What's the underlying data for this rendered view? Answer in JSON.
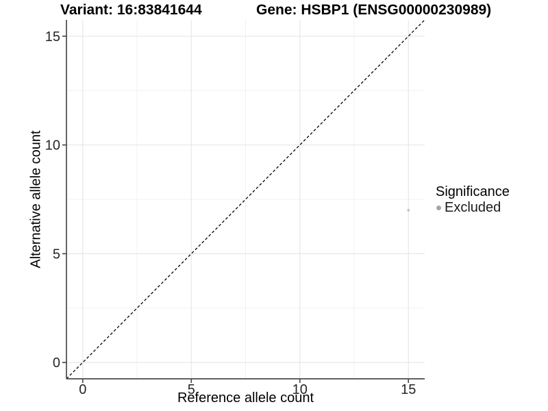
{
  "titles": {
    "variant": "Variant: 16:83841644",
    "gene": "Gene: HSBP1 (ENSG00000230989)"
  },
  "chart_data": {
    "type": "scatter",
    "title_left": "Variant: 16:83841644",
    "title_right": "Gene: HSBP1 (ENSG00000230989)",
    "xlabel": "Reference allele count",
    "ylabel": "Alternative allele count",
    "xlim": [
      -0.75,
      15.75
    ],
    "ylim": [
      -0.75,
      15.75
    ],
    "x_ticks": [
      0,
      5,
      10,
      15
    ],
    "y_ticks": [
      0,
      5,
      10,
      15
    ],
    "minor_gridlines": [
      2.5,
      7.5,
      12.5
    ],
    "grid": "on",
    "legend_position": "right",
    "points": [
      {
        "x": 15,
        "y": 7,
        "significance": "Excluded"
      }
    ],
    "identity_line": {
      "style": "dashed",
      "from": -0.75,
      "to": 15.75,
      "color": "#000000"
    },
    "colors": {
      "excluded_point": "#c2c2c2",
      "legend_dot": "#a6a6a6",
      "grid_major": "#e2e2e2",
      "grid_minor": "#f0f0f0",
      "axis_line": "#4a4a4a",
      "tick_text": "#262626"
    }
  },
  "legend": {
    "title": "Significance",
    "items": [
      {
        "label": "Excluded",
        "color": "#a6a6a6"
      }
    ]
  }
}
